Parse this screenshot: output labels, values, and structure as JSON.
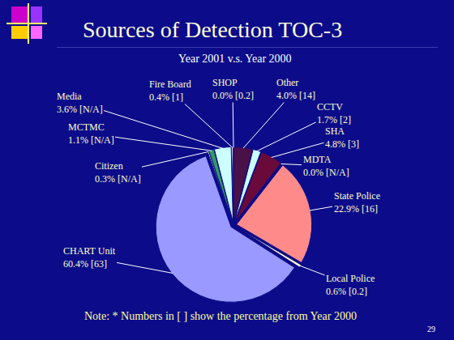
{
  "chart_data": {
    "type": "pie",
    "title": "Sources of Detection TOC-3",
    "subtitle": "Year 2001 v.s. Year 2000",
    "categories": [
      "Other",
      "CCTV",
      "SHA",
      "MDTA",
      "State Police",
      "Local Police",
      "CHART Unit",
      "Citizen",
      "MCTMC",
      "Media",
      "Fire Board",
      "SHOP"
    ],
    "values": [
      4.0,
      1.7,
      4.8,
      0.0,
      22.9,
      0.6,
      60.4,
      0.3,
      1.1,
      3.6,
      0.4,
      0.0
    ],
    "value_labels": [
      "4.0% [14]",
      "1.7% [2]",
      "4.8% [3]",
      "0.0% [N/A]",
      "22.9% [16]",
      "0.6% [0.2]",
      "60.4% [63]",
      "0.3% [N/A]",
      "1.1% [N/A]",
      "3.6% [N/A]",
      "0.4% [1]",
      "0.0% [0.2]"
    ],
    "colors": [
      "#4a1048",
      "#ccffff",
      "#6a0a3a",
      "#ffffff",
      "#ff8a8a",
      "#ffffcc",
      "#9999ff",
      "#ccffcc",
      "#339966",
      "#ccffff",
      "#ffffff",
      "#e0ffe0"
    ],
    "data_labels": true,
    "note": "Note: * Numbers in [ ] show the percentage from Year 2000",
    "page_number": "29"
  }
}
